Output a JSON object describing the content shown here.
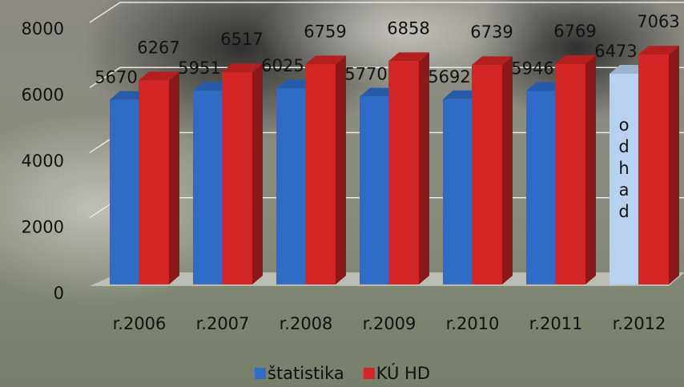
{
  "chart_data": {
    "type": "bar3d",
    "categories": [
      "r.2006",
      "r.2007",
      "r.2008",
      "r.2009",
      "r.2010",
      "r.2011",
      "r.2012"
    ],
    "series": [
      {
        "name": "štatistika",
        "color": "#2e6cc8",
        "colors": [
          "#2e6cc8",
          "#2e6cc8",
          "#2e6cc8",
          "#2e6cc8",
          "#2e6cc8",
          "#2e6cc8",
          "#b9d1f0"
        ],
        "values": [
          5670,
          5951,
          6025,
          5770,
          5692,
          5946,
          6473
        ]
      },
      {
        "name": "KÚ HD",
        "color": "#d42626",
        "values": [
          6267,
          6517,
          6759,
          6858,
          6739,
          6769,
          7063
        ]
      }
    ],
    "annotation": "odhad",
    "ylim": [
      0,
      8000
    ],
    "yticks": [
      0,
      2000,
      4000,
      6000,
      8000
    ],
    "grid": true,
    "legend": "bottom"
  }
}
